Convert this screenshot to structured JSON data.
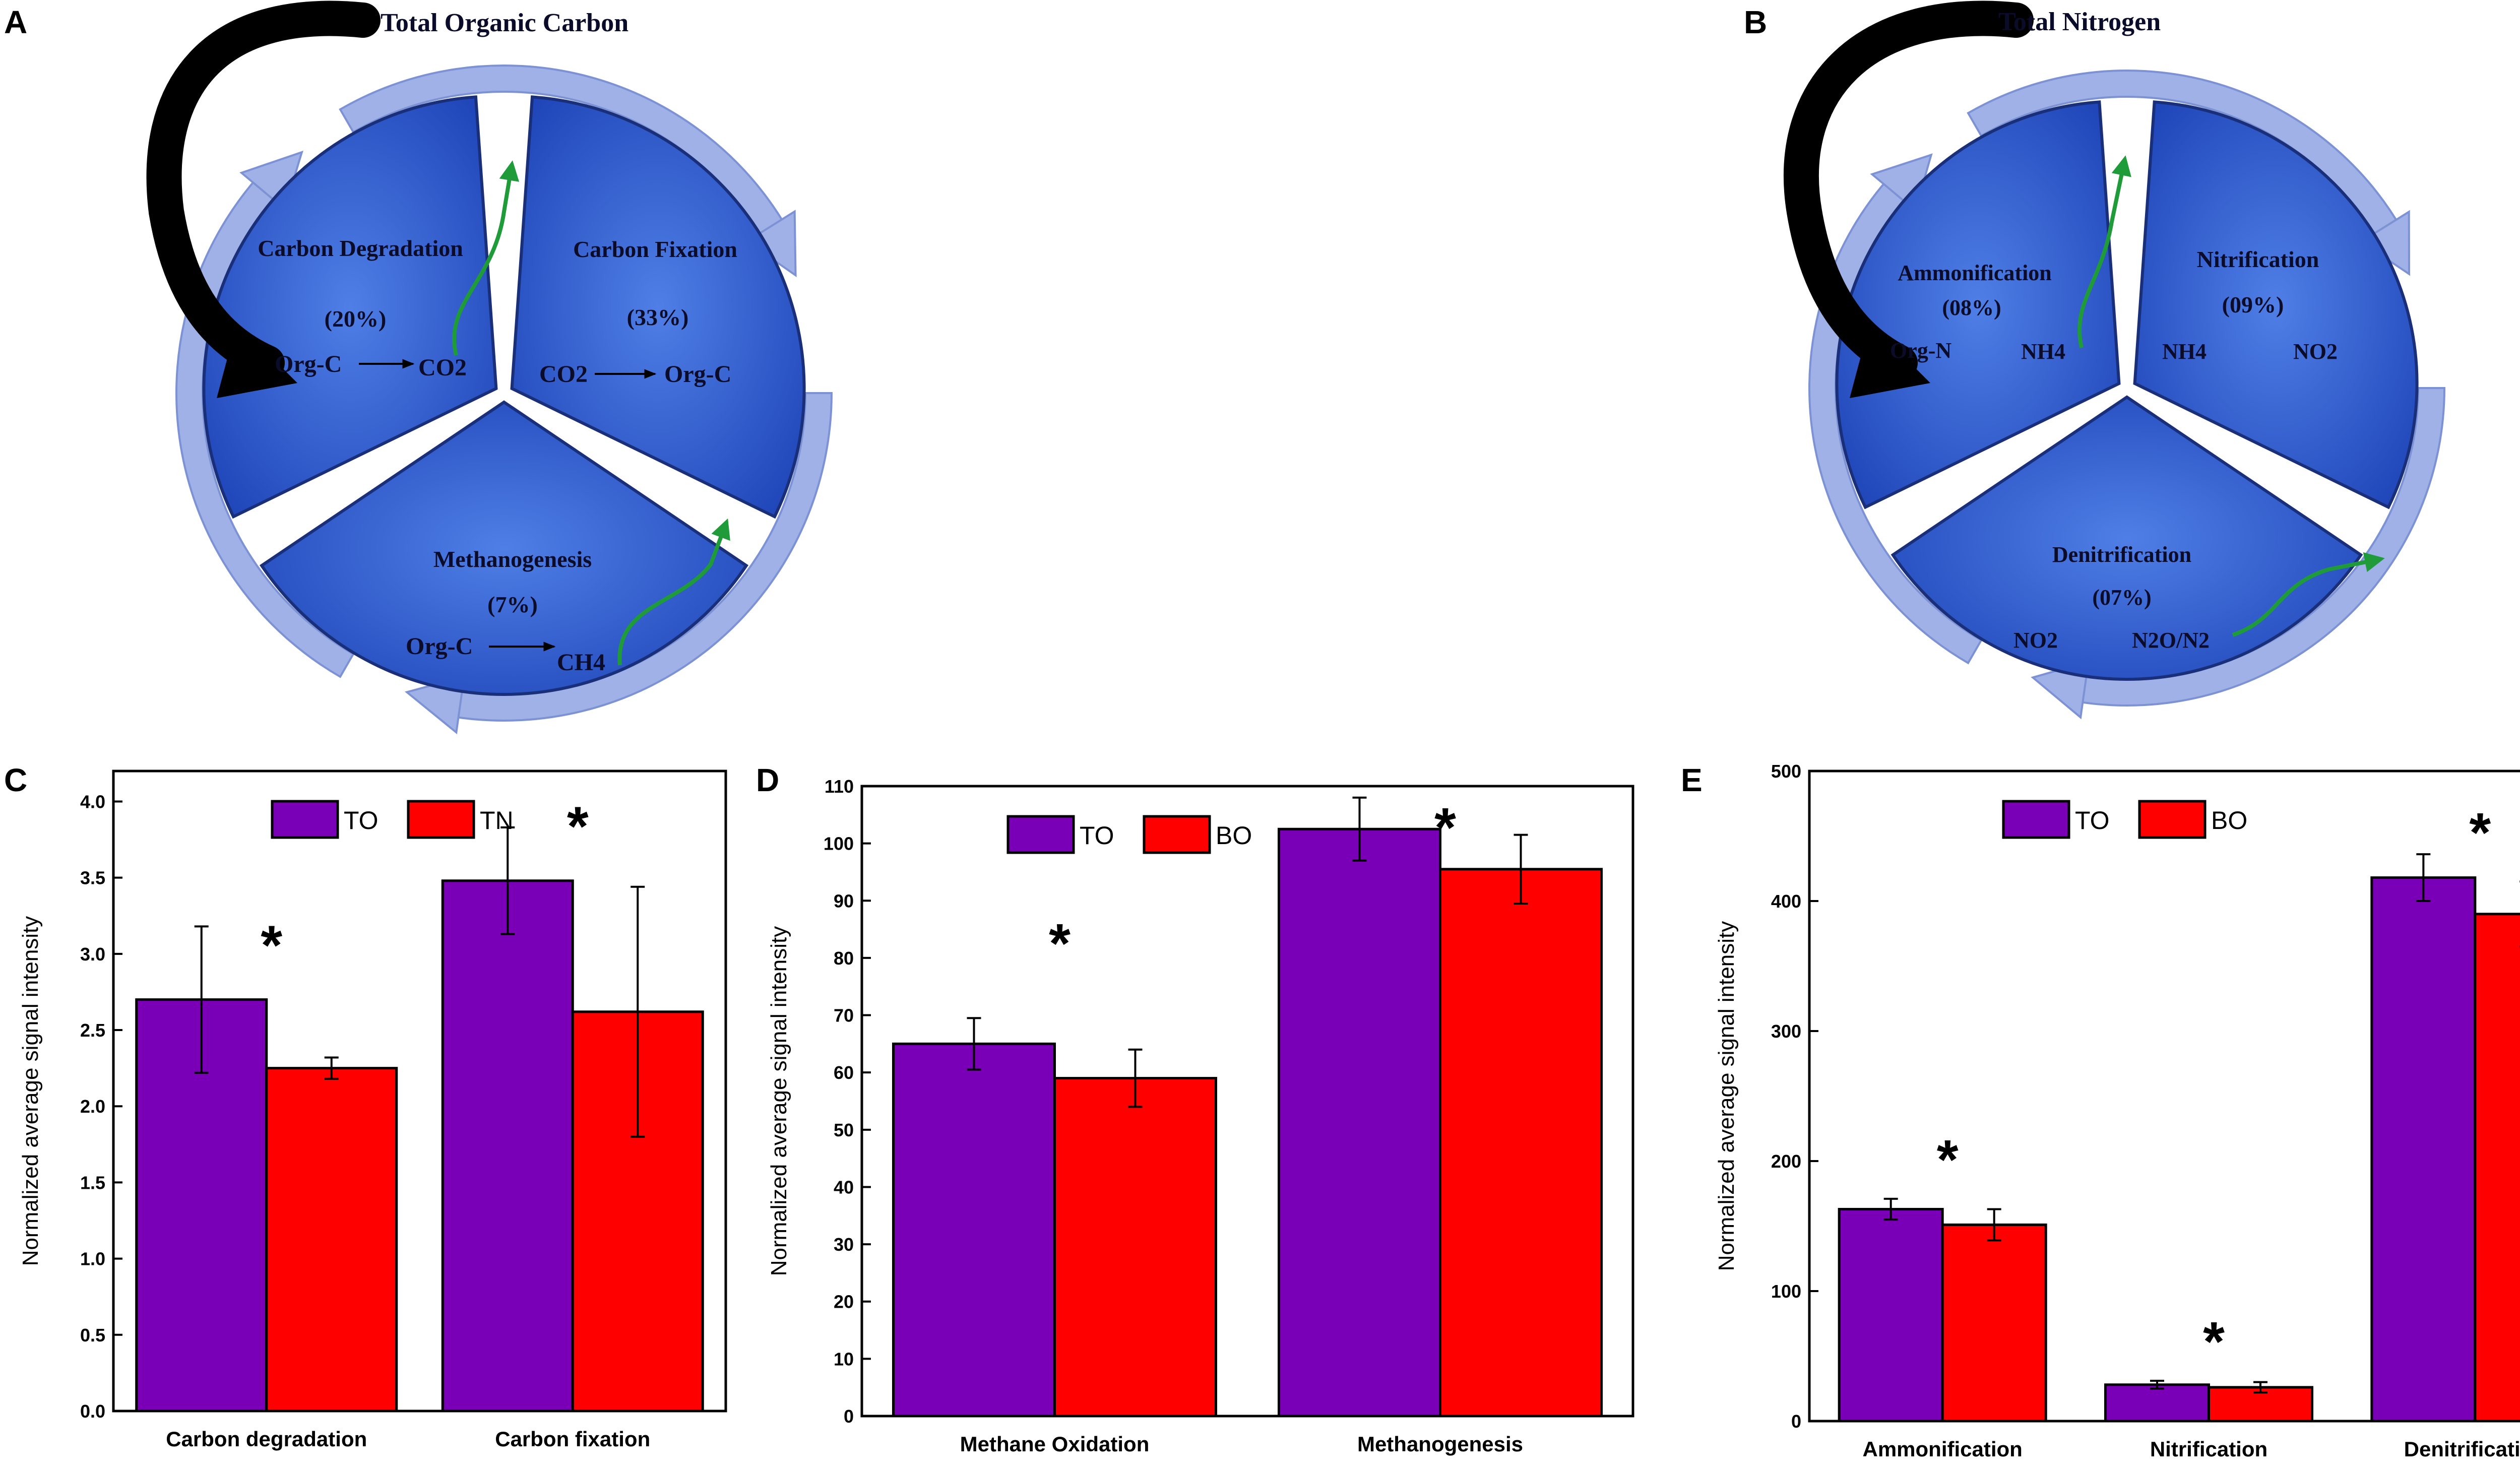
{
  "panels": {
    "A": "A",
    "B": "B",
    "C": "C",
    "D": "D",
    "E": "E"
  },
  "cycles": [
    {
      "title": "Total Organic Carbon",
      "sectors": [
        {
          "name": "Carbon Degradation",
          "pct": "(20%)",
          "from": "Org-C",
          "to": "CO2"
        },
        {
          "name": "Carbon Fixation",
          "pct": "(33%)",
          "from": "CO2",
          "to": "Org-C"
        },
        {
          "name": "Methanogenesis",
          "pct": "(7%)",
          "from": "Org-C",
          "to": "CH4"
        }
      ]
    },
    {
      "title": "Total Nitrogen",
      "sectors": [
        {
          "name": "Ammonification",
          "pct": "(08%)",
          "from": "Org-N",
          "to": "NH4"
        },
        {
          "name": "Nitrification",
          "pct": "(09%)",
          "from": "NH4",
          "to": "NO2"
        },
        {
          "name": "Denitrification",
          "pct": "(07%)",
          "from": "NO2",
          "to": "N2O/N2"
        }
      ]
    }
  ],
  "colors": {
    "series1": "#7a00b8",
    "series2": "#ff0000",
    "sector": "#2f5fd0",
    "ring": "#9fb1e6",
    "flow": "#1f9b3a"
  },
  "chart_data": [
    {
      "panel": "C",
      "type": "bar",
      "categories": [
        "Carbon degradation",
        "Carbon fixation"
      ],
      "series": [
        {
          "name": "TO",
          "values": [
            2.7,
            3.48
          ],
          "errors": [
            0.48,
            0.35
          ]
        },
        {
          "name": "TN",
          "values": [
            2.25,
            2.62
          ],
          "errors": [
            0.07,
            0.82
          ]
        }
      ],
      "significance": [
        "*",
        "*"
      ],
      "ylabel": "Normalized average signal intensity",
      "ylim": [
        0,
        4.2
      ],
      "yticks": [
        "0.0",
        "0.5",
        "1.0",
        "1.5",
        "2.0",
        "2.5",
        "3.0",
        "3.5",
        "4.0"
      ],
      "legend": "top-center",
      "grid": false
    },
    {
      "panel": "D",
      "type": "bar",
      "categories": [
        "Methane Oxidation",
        "Methanogenesis"
      ],
      "series": [
        {
          "name": "TO",
          "values": [
            65,
            102.5
          ],
          "errors": [
            4.5,
            5.5
          ]
        },
        {
          "name": "BO",
          "values": [
            59,
            95.5
          ],
          "errors": [
            5,
            6
          ]
        }
      ],
      "significance": [
        "*",
        "*"
      ],
      "ylabel": "Normalized average signal intensity",
      "ylim": [
        0,
        110
      ],
      "yticks": [
        "0",
        "10",
        "20",
        "30",
        "40",
        "50",
        "60",
        "70",
        "80",
        "90",
        "100",
        "110"
      ],
      "legend": "top-center",
      "grid": false
    },
    {
      "panel": "E",
      "type": "bar",
      "categories": [
        "Ammonification",
        "Nitrification",
        "Denitrification"
      ],
      "series": [
        {
          "name": "TO",
          "values": [
            163,
            28,
            418
          ],
          "errors": [
            8,
            3,
            18
          ]
        },
        {
          "name": "BO",
          "values": [
            151,
            26,
            390
          ],
          "errors": [
            12,
            4,
            25
          ]
        }
      ],
      "significance": [
        "*",
        "*",
        "*"
      ],
      "ylabel": "Normalized average signal intensity",
      "ylim": [
        0,
        500
      ],
      "yticks": [
        "0",
        "100",
        "200",
        "300",
        "400",
        "500"
      ],
      "legend": "top-center",
      "grid": false
    }
  ]
}
